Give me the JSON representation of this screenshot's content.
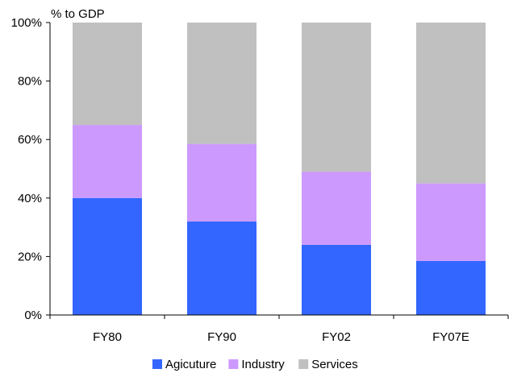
{
  "chart_data": {
    "type": "bar",
    "stacked": true,
    "unit_label": "% to GDP",
    "categories": [
      "FY80",
      "FY90",
      "FY02",
      "FY07E"
    ],
    "series": [
      {
        "name": "Agicuture",
        "color": "#3366ff",
        "values": [
          40,
          32,
          24,
          18.5
        ]
      },
      {
        "name": "Industry",
        "color": "#cc99ff",
        "values": [
          25,
          26.5,
          25,
          26.5
        ]
      },
      {
        "name": "Services",
        "color": "#c0c0c0",
        "values": [
          35,
          41.5,
          51,
          55
        ]
      }
    ],
    "ylim": [
      0,
      100
    ],
    "yticks": [
      "0%",
      "20%",
      "40%",
      "60%",
      "80%",
      "100%"
    ],
    "ytick_values": [
      0,
      20,
      40,
      60,
      80,
      100
    ],
    "grid": false,
    "legend_position": "bottom"
  }
}
